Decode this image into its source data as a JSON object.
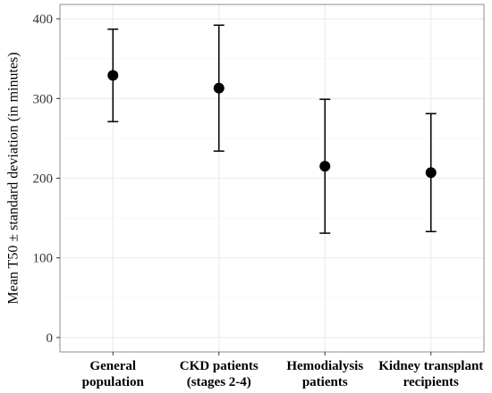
{
  "chart_data": {
    "type": "scatter",
    "title": "",
    "xlabel": "",
    "ylabel": "Mean T50 ± standard deviation (in minutes)",
    "categories": [
      [
        "General",
        "population"
      ],
      [
        "CKD patients",
        "(stages 2-4)"
      ],
      [
        "Hemodialysis",
        "patients"
      ],
      [
        "Kidney transplant",
        "recipients"
      ]
    ],
    "series": [
      {
        "mean": [
          329,
          313,
          215,
          207
        ],
        "lower": [
          271,
          234,
          131,
          133
        ],
        "upper": [
          387,
          392,
          299,
          281
        ]
      }
    ],
    "ylim": [
      -18,
      418
    ],
    "yticks": [
      0,
      100,
      200,
      300,
      400
    ],
    "ytick_labels": [
      "0",
      "100",
      "200",
      "300",
      "400"
    ],
    "grid": true,
    "legend": "none",
    "colors": {
      "point": "#000000",
      "errorbar": "#000000",
      "grid_major": "#ebebeb",
      "grid_minor": "#f5f5f5",
      "panel_border": "#8c8c8c",
      "tick_text": "#333333"
    }
  }
}
